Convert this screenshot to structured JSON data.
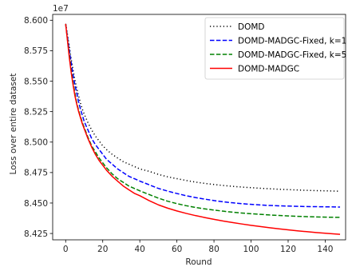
{
  "chart_data": {
    "type": "line",
    "xlabel": "Round",
    "ylabel": "Loss over entire dataset",
    "y_offset_label": "1e7",
    "y_scale_factor": 10000000,
    "xlim": [
      -7,
      151
    ],
    "ylim": [
      8.4198,
      8.6048
    ],
    "xticks": [
      0,
      20,
      40,
      60,
      80,
      100,
      120,
      140
    ],
    "xtick_labels": [
      "0",
      "20",
      "40",
      "60",
      "80",
      "100",
      "120",
      "140"
    ],
    "yticks": [
      8.425,
      8.45,
      8.475,
      8.5,
      8.525,
      8.55,
      8.575,
      8.6
    ],
    "ytick_labels": [
      "8.425",
      "8.450",
      "8.475",
      "8.500",
      "8.525",
      "8.550",
      "8.575",
      "8.600"
    ],
    "grid": false,
    "legend_position": "top-right",
    "series": [
      {
        "name": "DOMD",
        "color": "#000000",
        "dash": "dotted",
        "x": [
          0,
          1,
          2,
          3,
          4,
          5,
          6,
          7,
          8,
          9,
          10,
          12,
          14,
          16,
          18,
          20,
          22,
          25,
          28,
          31,
          34,
          37,
          40,
          45,
          50,
          55,
          60,
          65,
          70,
          75,
          80,
          85,
          90,
          95,
          100,
          105,
          110,
          115,
          120,
          125,
          130,
          135,
          140,
          145,
          148
        ],
        "y": [
          8.597,
          8.588,
          8.578,
          8.568,
          8.559,
          8.551,
          8.544,
          8.538,
          8.532,
          8.527,
          8.523,
          8.516,
          8.51,
          8.505,
          8.501,
          8.497,
          8.494,
          8.49,
          8.487,
          8.484,
          8.482,
          8.48,
          8.478,
          8.476,
          8.4735,
          8.4715,
          8.47,
          8.4685,
          8.4672,
          8.4661,
          8.4652,
          8.4644,
          8.4637,
          8.4631,
          8.4626,
          8.4621,
          8.4617,
          8.4613,
          8.461,
          8.4607,
          8.4604,
          8.4602,
          8.46,
          8.4598,
          8.4597
        ]
      },
      {
        "name": "DOMD-MADGC-Fixed, k=1",
        "color": "#0000ff",
        "dash": "dashed",
        "x": [
          0,
          1,
          2,
          3,
          4,
          5,
          6,
          7,
          8,
          9,
          10,
          12,
          14,
          16,
          18,
          20,
          22,
          25,
          28,
          31,
          34,
          37,
          40,
          45,
          50,
          55,
          60,
          65,
          70,
          75,
          80,
          85,
          90,
          95,
          100,
          105,
          110,
          115,
          120,
          125,
          130,
          135,
          140,
          145,
          148
        ],
        "y": [
          8.597,
          8.586,
          8.575,
          8.565,
          8.555,
          8.547,
          8.54,
          8.533,
          8.527,
          8.522,
          8.517,
          8.51,
          8.503,
          8.498,
          8.494,
          8.49,
          8.486,
          8.482,
          8.478,
          8.475,
          8.472,
          8.47,
          8.468,
          8.465,
          8.462,
          8.4598,
          8.4578,
          8.456,
          8.4545,
          8.4532,
          8.452,
          8.451,
          8.4502,
          8.4495,
          8.4489,
          8.4484,
          8.448,
          8.4477,
          8.4475,
          8.4473,
          8.4471,
          8.447,
          8.4469,
          8.4468,
          8.4467
        ]
      },
      {
        "name": "DOMD-MADGC-Fixed, k=5",
        "color": "#008000",
        "dash": "dashed",
        "x": [
          0,
          1,
          2,
          3,
          4,
          5,
          6,
          7,
          8,
          9,
          10,
          12,
          14,
          16,
          18,
          20,
          22,
          25,
          28,
          31,
          34,
          37,
          40,
          45,
          50,
          55,
          60,
          65,
          70,
          75,
          80,
          85,
          90,
          95,
          100,
          105,
          110,
          115,
          120,
          125,
          130,
          135,
          140,
          145,
          148
        ],
        "y": [
          8.597,
          8.584,
          8.571,
          8.559,
          8.549,
          8.54,
          8.532,
          8.526,
          8.521,
          8.516,
          8.512,
          8.504,
          8.497,
          8.492,
          8.487,
          8.483,
          8.479,
          8.474,
          8.47,
          8.467,
          8.464,
          8.462,
          8.46,
          8.457,
          8.454,
          8.4515,
          8.4495,
          8.4478,
          8.4464,
          8.4452,
          8.4442,
          8.4433,
          8.4425,
          8.4418,
          8.4412,
          8.4407,
          8.4402,
          8.4398,
          8.4394,
          8.4391,
          8.4388,
          8.4386,
          8.4384,
          8.4383,
          8.4382
        ]
      },
      {
        "name": "DOMD-MADGC",
        "color": "#ff0000",
        "dash": "solid",
        "x": [
          0,
          1,
          2,
          3,
          4,
          5,
          6,
          7,
          8,
          9,
          10,
          12,
          14,
          16,
          18,
          20,
          22,
          25,
          28,
          31,
          34,
          37,
          40,
          45,
          50,
          55,
          60,
          65,
          70,
          75,
          80,
          85,
          90,
          95,
          100,
          105,
          110,
          115,
          120,
          125,
          130,
          135,
          140,
          145,
          148
        ],
        "y": [
          8.597,
          8.583,
          8.569,
          8.557,
          8.547,
          8.538,
          8.531,
          8.525,
          8.52,
          8.515,
          8.511,
          8.503,
          8.496,
          8.49,
          8.485,
          8.481,
          8.477,
          8.472,
          8.468,
          8.464,
          8.461,
          8.458,
          8.456,
          8.452,
          8.4485,
          8.4458,
          8.4435,
          8.4415,
          8.4397,
          8.4381,
          8.4366,
          8.4352,
          8.434,
          8.4328,
          8.4317,
          8.4307,
          8.4297,
          8.4288,
          8.428,
          8.4272,
          8.4265,
          8.4258,
          8.4252,
          8.4246,
          8.4243
        ]
      }
    ]
  }
}
